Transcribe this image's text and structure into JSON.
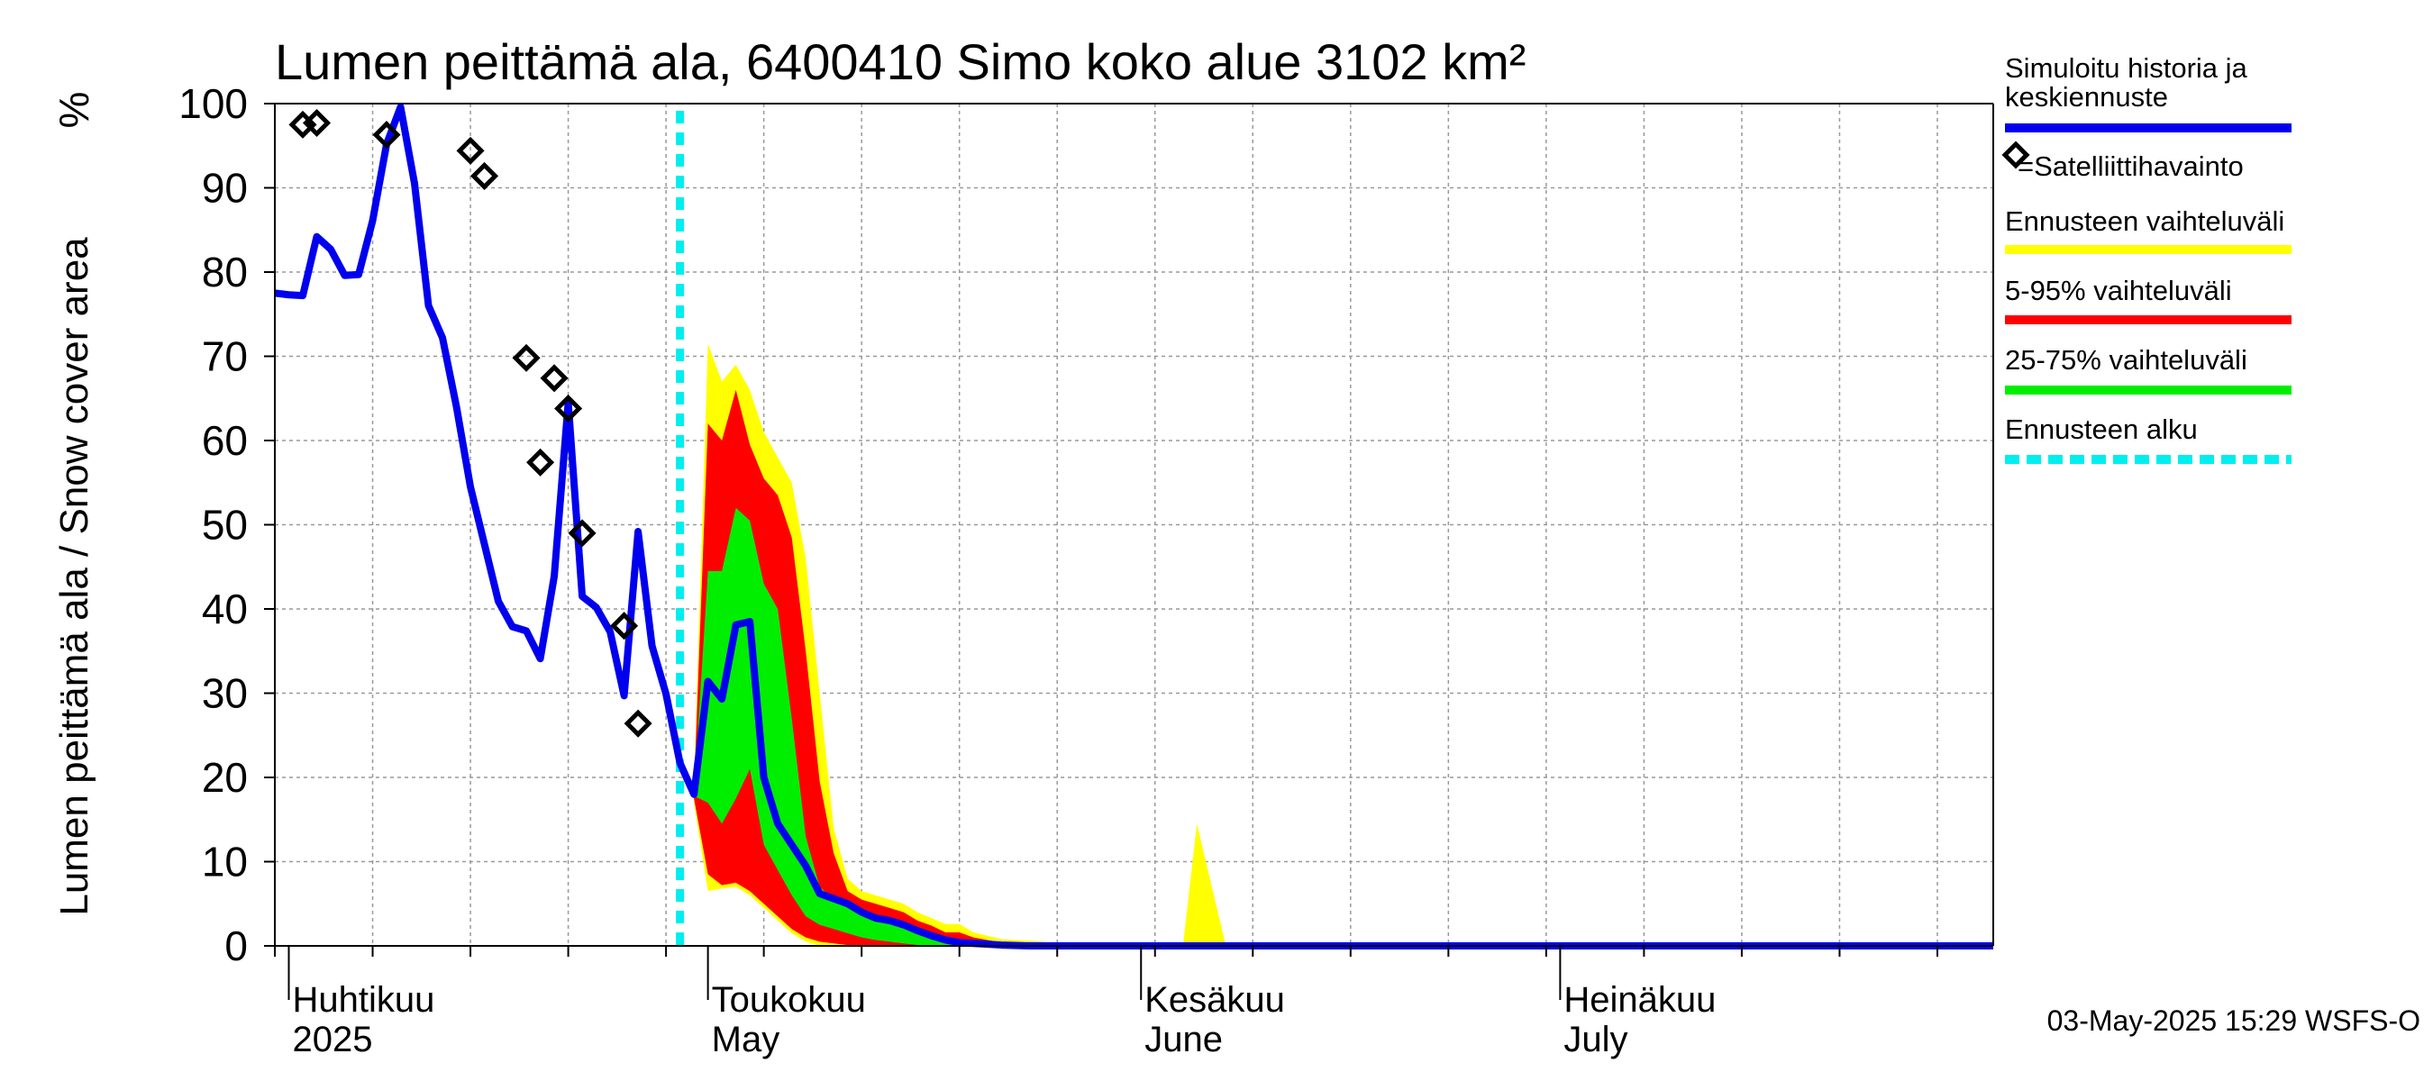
{
  "chart_data": {
    "type": "area",
    "title": "Lumen peittämä ala, 6400410 Simo koko alue 3102 km²",
    "ylabel": "Lumen peittämä ala / Snow cover area",
    "yunit": "%",
    "ylim": [
      0,
      100
    ],
    "yticks": [
      0,
      10,
      20,
      30,
      40,
      50,
      60,
      70,
      80,
      90,
      100
    ],
    "xlim": [
      "2025-03-31",
      "2025-08-01"
    ],
    "grid": true,
    "legend_position": "right",
    "months": [
      {
        "date": "2025-04-01",
        "label1": "Huhtikuu",
        "label2": "2025"
      },
      {
        "date": "2025-05-01",
        "label1": "Toukokuu",
        "label2": "May"
      },
      {
        "date": "2025-06-01",
        "label1": "Kesäkuu",
        "label2": "June"
      },
      {
        "date": "2025-07-01",
        "label1": "Heinäkuu",
        "label2": "July"
      }
    ],
    "forecast_start": "2025-04-29",
    "colors": {
      "simulated": "#0000ee",
      "forecast_range": "#ffff00",
      "p5_95": "#ff0000",
      "p25_75": "#00ee00",
      "forecast_start": "#00eeee",
      "observation": "#000000",
      "grid": "#999999"
    },
    "series": [
      {
        "name": "Simuloitu historia ja keskiennuste",
        "role": "simulated",
        "points": [
          [
            "2025-03-31",
            77.5
          ],
          [
            "2025-04-01",
            77.3
          ],
          [
            "2025-04-02",
            77.2
          ],
          [
            "2025-04-03",
            84.2
          ],
          [
            "2025-04-04",
            82.7
          ],
          [
            "2025-04-05",
            79.6
          ],
          [
            "2025-04-06",
            79.7
          ],
          [
            "2025-04-07",
            86.1
          ],
          [
            "2025-04-08",
            95.2
          ],
          [
            "2025-04-09",
            99.6
          ],
          [
            "2025-04-10",
            90.5
          ],
          [
            "2025-04-11",
            76.0
          ],
          [
            "2025-04-12",
            72.2
          ],
          [
            "2025-04-13",
            64.0
          ],
          [
            "2025-04-14",
            54.5
          ],
          [
            "2025-04-15",
            47.7
          ],
          [
            "2025-04-16",
            40.9
          ],
          [
            "2025-04-17",
            37.9
          ],
          [
            "2025-04-18",
            37.4
          ],
          [
            "2025-04-19",
            34.1
          ],
          [
            "2025-04-20",
            43.9
          ],
          [
            "2025-04-21",
            64.5
          ],
          [
            "2025-04-22",
            41.5
          ],
          [
            "2025-04-23",
            40.2
          ],
          [
            "2025-04-24",
            37.3
          ],
          [
            "2025-04-25",
            29.7
          ],
          [
            "2025-04-26",
            49.2
          ],
          [
            "2025-04-27",
            35.6
          ],
          [
            "2025-04-28",
            29.9
          ],
          [
            "2025-04-29",
            21.7
          ],
          [
            "2025-04-30",
            18.0
          ],
          [
            "2025-05-01",
            31.4
          ],
          [
            "2025-05-02",
            29.3
          ],
          [
            "2025-05-03",
            38.1
          ],
          [
            "2025-05-04",
            38.5
          ],
          [
            "2025-05-05",
            20.0
          ],
          [
            "2025-05-06",
            14.5
          ],
          [
            "2025-05-07",
            12.0
          ],
          [
            "2025-05-08",
            9.5
          ],
          [
            "2025-05-09",
            6.2
          ],
          [
            "2025-05-10",
            5.6
          ],
          [
            "2025-05-11",
            5.0
          ],
          [
            "2025-05-12",
            4.0
          ],
          [
            "2025-05-13",
            3.3
          ],
          [
            "2025-05-14",
            3.0
          ],
          [
            "2025-05-15",
            2.5
          ],
          [
            "2025-05-16",
            1.8
          ],
          [
            "2025-05-17",
            1.2
          ],
          [
            "2025-05-18",
            0.7
          ],
          [
            "2025-05-19",
            0.4
          ],
          [
            "2025-05-20",
            0.3
          ],
          [
            "2025-05-21",
            0.2
          ],
          [
            "2025-05-22",
            0.1
          ],
          [
            "2025-05-24",
            0
          ],
          [
            "2025-08-01",
            0
          ]
        ]
      },
      {
        "name": "Ennusteen vaihteluväli",
        "role": "forecast_range",
        "upper": [
          [
            "2025-04-30",
            19
          ],
          [
            "2025-05-01",
            71.5
          ],
          [
            "2025-05-02",
            67
          ],
          [
            "2025-05-03",
            69
          ],
          [
            "2025-05-04",
            66
          ],
          [
            "2025-05-05",
            61
          ],
          [
            "2025-05-06",
            58
          ],
          [
            "2025-05-07",
            55
          ],
          [
            "2025-05-08",
            46
          ],
          [
            "2025-05-09",
            30
          ],
          [
            "2025-05-10",
            14
          ],
          [
            "2025-05-11",
            8
          ],
          [
            "2025-05-12",
            6.5
          ],
          [
            "2025-05-13",
            6
          ],
          [
            "2025-05-14",
            5.5
          ],
          [
            "2025-05-15",
            5
          ],
          [
            "2025-05-16",
            4
          ],
          [
            "2025-05-17",
            3.3
          ],
          [
            "2025-05-18",
            2.6
          ],
          [
            "2025-05-19",
            2.6
          ],
          [
            "2025-05-20",
            1.6
          ],
          [
            "2025-05-21",
            1.2
          ],
          [
            "2025-05-22",
            0.8
          ],
          [
            "2025-05-23",
            0.7
          ],
          [
            "2025-05-24",
            0.6
          ],
          [
            "2025-05-25",
            0.5
          ],
          [
            "2025-05-26",
            0.3
          ],
          [
            "2025-05-27",
            0.1
          ],
          [
            "2025-05-28",
            0
          ],
          [
            "2025-06-04",
            0
          ],
          [
            "2025-06-05",
            14.5
          ],
          [
            "2025-06-07",
            0.5
          ],
          [
            "2025-06-08",
            0
          ],
          [
            "2025-08-01",
            0
          ]
        ],
        "lower": [
          [
            "2025-04-30",
            17
          ],
          [
            "2025-05-01",
            6.5
          ],
          [
            "2025-05-02",
            6.8
          ],
          [
            "2025-05-03",
            7
          ],
          [
            "2025-05-04",
            6
          ],
          [
            "2025-05-05",
            4.5
          ],
          [
            "2025-05-06",
            3
          ],
          [
            "2025-05-07",
            1.5
          ],
          [
            "2025-05-08",
            0.5
          ],
          [
            "2025-05-09",
            0
          ],
          [
            "2025-08-01",
            0
          ]
        ]
      },
      {
        "name": "5-95% vaihteluväli",
        "role": "p5_95",
        "upper": [
          [
            "2025-04-30",
            18.5
          ],
          [
            "2025-05-01",
            62
          ],
          [
            "2025-05-02",
            60
          ],
          [
            "2025-05-03",
            66
          ],
          [
            "2025-05-04",
            59.5
          ],
          [
            "2025-05-05",
            55.5
          ],
          [
            "2025-05-06",
            53.5
          ],
          [
            "2025-05-07",
            48.5
          ],
          [
            "2025-05-08",
            35
          ],
          [
            "2025-05-09",
            19.5
          ],
          [
            "2025-05-10",
            11
          ],
          [
            "2025-05-11",
            6.5
          ],
          [
            "2025-05-12",
            5.5
          ],
          [
            "2025-05-13",
            5
          ],
          [
            "2025-05-14",
            4.5
          ],
          [
            "2025-05-15",
            4
          ],
          [
            "2025-05-16",
            3
          ],
          [
            "2025-05-17",
            2.4
          ],
          [
            "2025-05-18",
            1.6
          ],
          [
            "2025-05-19",
            1.6
          ],
          [
            "2025-05-20",
            1
          ],
          [
            "2025-05-21",
            0.7
          ],
          [
            "2025-05-22",
            0.4
          ],
          [
            "2025-05-23",
            0.2
          ],
          [
            "2025-05-24",
            0.1
          ],
          [
            "2025-05-25",
            0
          ],
          [
            "2025-08-01",
            0
          ]
        ],
        "lower": [
          [
            "2025-04-30",
            17.5
          ],
          [
            "2025-05-01",
            8.5
          ],
          [
            "2025-05-02",
            7.2
          ],
          [
            "2025-05-03",
            7.5
          ],
          [
            "2025-05-04",
            6.5
          ],
          [
            "2025-05-05",
            5
          ],
          [
            "2025-05-06",
            3.5
          ],
          [
            "2025-05-07",
            2
          ],
          [
            "2025-05-08",
            1
          ],
          [
            "2025-05-09",
            0.5
          ],
          [
            "2025-05-10",
            0.3
          ],
          [
            "2025-05-11",
            0.1
          ],
          [
            "2025-05-12",
            0
          ],
          [
            "2025-08-01",
            0
          ]
        ]
      },
      {
        "name": "25-75% vaihteluväli",
        "role": "p25_75",
        "upper": [
          [
            "2025-04-30",
            18
          ],
          [
            "2025-05-01",
            44.5
          ],
          [
            "2025-05-02",
            44.5
          ],
          [
            "2025-05-03",
            52
          ],
          [
            "2025-05-04",
            50.5
          ],
          [
            "2025-05-05",
            43
          ],
          [
            "2025-05-06",
            40
          ],
          [
            "2025-05-07",
            27
          ],
          [
            "2025-05-08",
            13
          ],
          [
            "2025-05-09",
            7
          ],
          [
            "2025-05-10",
            5.5
          ],
          [
            "2025-05-11",
            4.5
          ],
          [
            "2025-05-12",
            3.8
          ],
          [
            "2025-05-13",
            3.3
          ],
          [
            "2025-05-14",
            2.8
          ],
          [
            "2025-05-15",
            2.2
          ],
          [
            "2025-05-16",
            1.5
          ],
          [
            "2025-05-17",
            1
          ],
          [
            "2025-05-18",
            0.6
          ],
          [
            "2025-05-19",
            0.3
          ],
          [
            "2025-05-20",
            0.1
          ],
          [
            "2025-05-21",
            0
          ],
          [
            "2025-08-01",
            0
          ]
        ],
        "lower": [
          [
            "2025-04-30",
            17.8
          ],
          [
            "2025-05-01",
            17
          ],
          [
            "2025-05-02",
            14.5
          ],
          [
            "2025-05-03",
            17.5
          ],
          [
            "2025-05-04",
            21
          ],
          [
            "2025-05-05",
            12
          ],
          [
            "2025-05-06",
            9
          ],
          [
            "2025-05-07",
            6
          ],
          [
            "2025-05-08",
            3.5
          ],
          [
            "2025-05-09",
            2.5
          ],
          [
            "2025-05-10",
            2
          ],
          [
            "2025-05-11",
            1.5
          ],
          [
            "2025-05-12",
            1
          ],
          [
            "2025-05-13",
            0.7
          ],
          [
            "2025-05-14",
            0.5
          ],
          [
            "2025-05-15",
            0.3
          ],
          [
            "2025-05-16",
            0.1
          ],
          [
            "2025-05-17",
            0
          ],
          [
            "2025-08-01",
            0
          ]
        ]
      }
    ],
    "observations": {
      "name": "=Satelliittihavainto",
      "points": [
        [
          "2025-04-02",
          97.5
        ],
        [
          "2025-04-03",
          97.7
        ],
        [
          "2025-04-08",
          96.3
        ],
        [
          "2025-04-14",
          94.4
        ],
        [
          "2025-04-15",
          91.4
        ],
        [
          "2025-04-18",
          69.8
        ],
        [
          "2025-04-19",
          57.4
        ],
        [
          "2025-04-20",
          67.4
        ],
        [
          "2025-04-21",
          63.8
        ],
        [
          "2025-04-22",
          49.0
        ],
        [
          "2025-04-25",
          38.0
        ],
        [
          "2025-04-26",
          26.4
        ]
      ]
    },
    "legend": [
      {
        "label": "Simuloitu historia ja keskiennuste",
        "role": "simulated",
        "style": "line"
      },
      {
        "label": "=Satelliittihavainto",
        "role": "observation",
        "style": "marker"
      },
      {
        "label": "Ennusteen vaihteluväli",
        "role": "forecast_range",
        "style": "line"
      },
      {
        "label": "5-95% vaihteluväli",
        "role": "p5_95",
        "style": "line"
      },
      {
        "label": "25-75% vaihteluväli",
        "role": "p25_75",
        "style": "line"
      },
      {
        "label": "Ennusteen alku",
        "role": "forecast_start",
        "style": "dashed"
      }
    ],
    "timestamp": "03-May-2025 15:29 WSFS-O"
  }
}
